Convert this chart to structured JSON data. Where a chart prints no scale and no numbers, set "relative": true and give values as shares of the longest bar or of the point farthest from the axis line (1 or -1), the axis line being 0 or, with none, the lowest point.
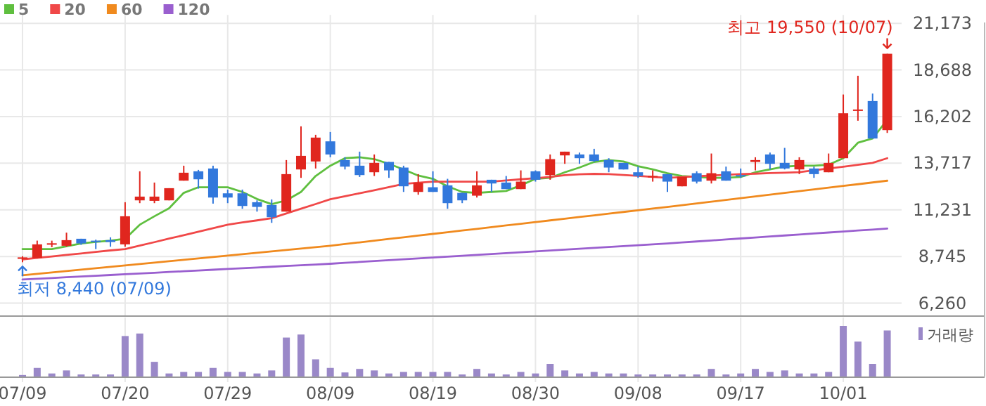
{
  "chart_data": [
    {
      "type": "candlestick",
      "categories": [
        "07/09",
        null,
        null,
        null,
        null,
        null,
        null,
        "07/20",
        null,
        null,
        null,
        null,
        null,
        null,
        "07/29",
        null,
        null,
        null,
        null,
        null,
        null,
        "08/09",
        null,
        null,
        null,
        null,
        null,
        null,
        "08/19",
        null,
        null,
        null,
        null,
        null,
        null,
        "08/30",
        null,
        null,
        null,
        null,
        null,
        null,
        "09/08",
        null,
        null,
        null,
        null,
        null,
        null,
        "09/17",
        null,
        null,
        null,
        null,
        null,
        null,
        "10/01",
        null,
        null,
        null
      ],
      "ohlc": [
        [
          8620,
          8760,
          8440,
          8700
        ],
        [
          8668,
          9592,
          8650,
          9392
        ],
        [
          9400,
          9590,
          9240,
          9450
        ],
        [
          9317,
          10016,
          9267,
          9617
        ],
        [
          9692,
          9692,
          9367,
          9442
        ],
        [
          9590,
          9642,
          9142,
          9560
        ],
        [
          9617,
          9767,
          9267,
          9517
        ],
        [
          9392,
          11639,
          9267,
          10890
        ],
        [
          11738,
          13286,
          11589,
          11938
        ],
        [
          11713,
          12687,
          11589,
          11938
        ],
        [
          11738,
          12387,
          11738,
          12387
        ],
        [
          12787,
          13585,
          12787,
          13211
        ],
        [
          13286,
          13361,
          12362,
          12861
        ],
        [
          13436,
          13585,
          11564,
          11888
        ],
        [
          12112,
          12312,
          11589,
          11888
        ],
        [
          12112,
          12312,
          11289,
          11439
        ],
        [
          11639,
          11738,
          11139,
          11389
        ],
        [
          11489,
          11788,
          10540,
          10840
        ],
        [
          11139,
          13885,
          11139,
          13136
        ],
        [
          13385,
          15682,
          12937,
          14109
        ],
        [
          13810,
          15233,
          13436,
          15083
        ],
        [
          14883,
          15382,
          14034,
          14184
        ],
        [
          13885,
          14034,
          13385,
          13535
        ],
        [
          13585,
          14334,
          12986,
          13086
        ],
        [
          13236,
          14184,
          13036,
          13735
        ],
        [
          13785,
          13785,
          12937,
          13336
        ],
        [
          13486,
          13585,
          12187,
          12487
        ],
        [
          12187,
          13136,
          12038,
          12687
        ],
        [
          12437,
          13286,
          12187,
          12187
        ],
        [
          12537,
          12886,
          11289,
          11589
        ],
        [
          12137,
          12137,
          11589,
          11738
        ],
        [
          11988,
          13286,
          11888,
          12537
        ],
        [
          12837,
          12837,
          12187,
          12637
        ],
        [
          12687,
          13036,
          12337,
          12337
        ],
        [
          12337,
          13336,
          12337,
          12737
        ],
        [
          13286,
          13336,
          12737,
          12837
        ],
        [
          13086,
          14184,
          12837,
          13935
        ],
        [
          14134,
          14334,
          13685,
          14334
        ],
        [
          14184,
          14284,
          13685,
          13985
        ],
        [
          14184,
          14484,
          13785,
          13835
        ],
        [
          13885,
          13985,
          13236,
          13486
        ],
        [
          13735,
          13735,
          13385,
          13385
        ],
        [
          13236,
          13535,
          12937,
          13036
        ],
        [
          12986,
          13336,
          12737,
          13036
        ],
        [
          13136,
          13136,
          12187,
          12737
        ],
        [
          12487,
          12986,
          12487,
          12986
        ],
        [
          13186,
          13286,
          12637,
          12737
        ],
        [
          12787,
          14234,
          12637,
          13186
        ],
        [
          13286,
          13535,
          12787,
          12787
        ],
        [
          13086,
          13435,
          12937,
          13036
        ],
        [
          13785,
          14034,
          13336,
          13885
        ],
        [
          14184,
          14284,
          13386,
          13685
        ],
        [
          13735,
          14534,
          13386,
          13436
        ],
        [
          13386,
          14034,
          13136,
          13885
        ],
        [
          13436,
          13535,
          12937,
          13136
        ],
        [
          13236,
          14234,
          13236,
          13735
        ],
        [
          13985,
          17379,
          13985,
          16381
        ],
        [
          16530,
          18378,
          15982,
          16580
        ],
        [
          17030,
          17429,
          15033,
          15033
        ],
        [
          15482,
          19550,
          15332,
          19550
        ]
      ],
      "colors": [
        "#e0261e",
        "#e0261e",
        "#e0261e",
        "#e0261e",
        "#3278dc",
        "#3278dc",
        "#3278dc",
        "#e0261e",
        "#e0261e",
        "#e0261e",
        "#e0261e",
        "#e0261e",
        "#3278dc",
        "#3278dc",
        "#3278dc",
        "#3278dc",
        "#3278dc",
        "#3278dc",
        "#e0261e",
        "#e0261e",
        "#e0261e",
        "#3278dc",
        "#3278dc",
        "#3278dc",
        "#e0261e",
        "#3278dc",
        "#3278dc",
        "#e0261e",
        "#3278dc",
        "#3278dc",
        "#3278dc",
        "#e0261e",
        "#3278dc",
        "#3278dc",
        "#e0261e",
        "#3278dc",
        "#e0261e",
        "#e0261e",
        "#3278dc",
        "#3278dc",
        "#3278dc",
        "#3278dc",
        "#3278dc",
        "#e0261e",
        "#3278dc",
        "#e0261e",
        "#3278dc",
        "#e0261e",
        "#3278dc",
        "#3278dc",
        "#e0261e",
        "#3278dc",
        "#3278dc",
        "#e0261e",
        "#3278dc",
        "#e0261e",
        "#e0261e",
        "#e0261e",
        "#3278dc",
        "#e0261e"
      ],
      "series": [
        {
          "name": "5",
          "type": "line",
          "color": "#5fbf3f",
          "values": [
            9142,
            9142,
            9142,
            9290,
            9442,
            9520,
            9592,
            9690,
            10440,
            10890,
            11314,
            12137,
            12437,
            12437,
            12437,
            12187,
            11810,
            11539,
            11738,
            12187,
            13036,
            13585,
            13985,
            14034,
            13935,
            13685,
            13385,
            13060,
            12886,
            12487,
            12187,
            12137,
            12187,
            12237,
            12537,
            12886,
            12937,
            13236,
            13486,
            13785,
            13885,
            13810,
            13560,
            13386,
            13186,
            13036,
            12986,
            12937,
            12937,
            12986,
            13236,
            13386,
            13535,
            13585,
            13585,
            13635,
            13985,
            14808,
            15033,
            16031
          ]
        },
        {
          "name": "20",
          "type": "line",
          "color": "#f04848",
          "values": [
            8593,
            8670,
            8750,
            8830,
            8910,
            8990,
            9070,
            9142,
            9330,
            9510,
            9700,
            9880,
            10070,
            10250,
            10440,
            10560,
            10670,
            10790,
            11040,
            11290,
            11540,
            11800,
            11960,
            12120,
            12280,
            12440,
            12612,
            12680,
            12737,
            12737,
            12737,
            12737,
            12737,
            12800,
            12860,
            12920,
            12986,
            13080,
            13130,
            13150,
            13136,
            13090,
            13040,
            12986,
            12937,
            12980,
            13020,
            13060,
            13100,
            13136,
            13160,
            13190,
            13210,
            13236,
            13340,
            13436,
            13530,
            13630,
            13735,
            13985
          ]
        },
        {
          "name": "60",
          "type": "line",
          "color": "#f08a1e",
          "values": [
            7745,
            7820,
            7895,
            7970,
            8045,
            8120,
            8195,
            8270,
            8345,
            8420,
            8495,
            8570,
            8645,
            8720,
            8795,
            8870,
            8945,
            9020,
            9095,
            9170,
            9245,
            9320,
            9410,
            9500,
            9590,
            9680,
            9770,
            9860,
            9950,
            10040,
            10130,
            10220,
            10310,
            10400,
            10490,
            10580,
            10670,
            10760,
            10850,
            10940,
            11030,
            11120,
            11210,
            11300,
            11390,
            11483,
            11576,
            11669,
            11762,
            11855,
            11948,
            12041,
            12134,
            12227,
            12320,
            12413,
            12506,
            12599,
            12692,
            12785
          ]
        },
        {
          "name": "120",
          "type": "line",
          "color": "#9a5fcf",
          "values": [
            7520,
            7560,
            7600,
            7640,
            7680,
            7720,
            7760,
            7800,
            7840,
            7880,
            7920,
            7960,
            8000,
            8040,
            8080,
            8120,
            8160,
            8200,
            8240,
            8280,
            8320,
            8360,
            8407,
            8454,
            8501,
            8548,
            8595,
            8642,
            8689,
            8736,
            8783,
            8830,
            8877,
            8924,
            8971,
            9018,
            9065,
            9112,
            9159,
            9206,
            9253,
            9300,
            9347,
            9394,
            9441,
            9494,
            9547,
            9600,
            9653,
            9706,
            9759,
            9812,
            9865,
            9918,
            9971,
            10024,
            10077,
            10130,
            10183,
            10236
          ]
        }
      ],
      "ylim": [
        5570,
        21173
      ],
      "yticks": [
        {
          "value": 6260,
          "label": "6,260"
        },
        {
          "value": 8745,
          "label": "8,745"
        },
        {
          "value": 11231,
          "label": "11,231"
        },
        {
          "value": 13717,
          "label": "13,717"
        },
        {
          "value": 16202,
          "label": "16,202"
        },
        {
          "value": 18688,
          "label": "18,688"
        },
        {
          "value": 21173,
          "label": "21,173"
        }
      ],
      "grid": true,
      "legend": "top left",
      "tick_labels": "y",
      "annotations": [
        "최고 19,550 (10/07)",
        {
          "text": "최저 8,440 (07/09)",
          "x": "07/09",
          "y": 8440
        }
      ]
    },
    {
      "type": "bar",
      "categories": [
        "07/09",
        null,
        null,
        null,
        null,
        null,
        null,
        "07/20",
        null,
        null,
        null,
        null,
        null,
        null,
        "07/29",
        null,
        null,
        null,
        null,
        null,
        null,
        "08/09",
        null,
        null,
        null,
        null,
        null,
        null,
        "08/19",
        null,
        null,
        null,
        null,
        null,
        null,
        "08/30",
        null,
        null,
        null,
        null,
        null,
        null,
        "09/08",
        null,
        null,
        null,
        null,
        null,
        null,
        "09/17",
        null,
        null,
        null,
        null,
        null,
        null,
        "10/01",
        null,
        null,
        null
      ],
      "series": [
        {
          "name": "거래량",
          "color": "#9a88c8",
          "values": [
            0.03,
            0.17,
            0.06,
            0.12,
            0.04,
            0.04,
            0.04,
            0.8,
            0.85,
            0.29,
            0.06,
            0.09,
            0.09,
            0.17,
            0.09,
            0.09,
            0.06,
            0.12,
            0.77,
            0.83,
            0.34,
            0.17,
            0.08,
            0.15,
            0.12,
            0.06,
            0.09,
            0.09,
            0.09,
            0.09,
            0.04,
            0.15,
            0.06,
            0.04,
            0.09,
            0.06,
            0.25,
            0.12,
            0.06,
            0.09,
            0.06,
            0.06,
            0.04,
            0.04,
            0.04,
            0.04,
            0.04,
            0.15,
            0.04,
            0.06,
            0.15,
            0.09,
            0.12,
            0.06,
            0.06,
            0.09,
            1,
            0.69,
            0.25,
            0.91
          ]
        }
      ],
      "relative": true,
      "grid": true,
      "legend": "top right",
      "tick_labels": "x"
    }
  ]
}
